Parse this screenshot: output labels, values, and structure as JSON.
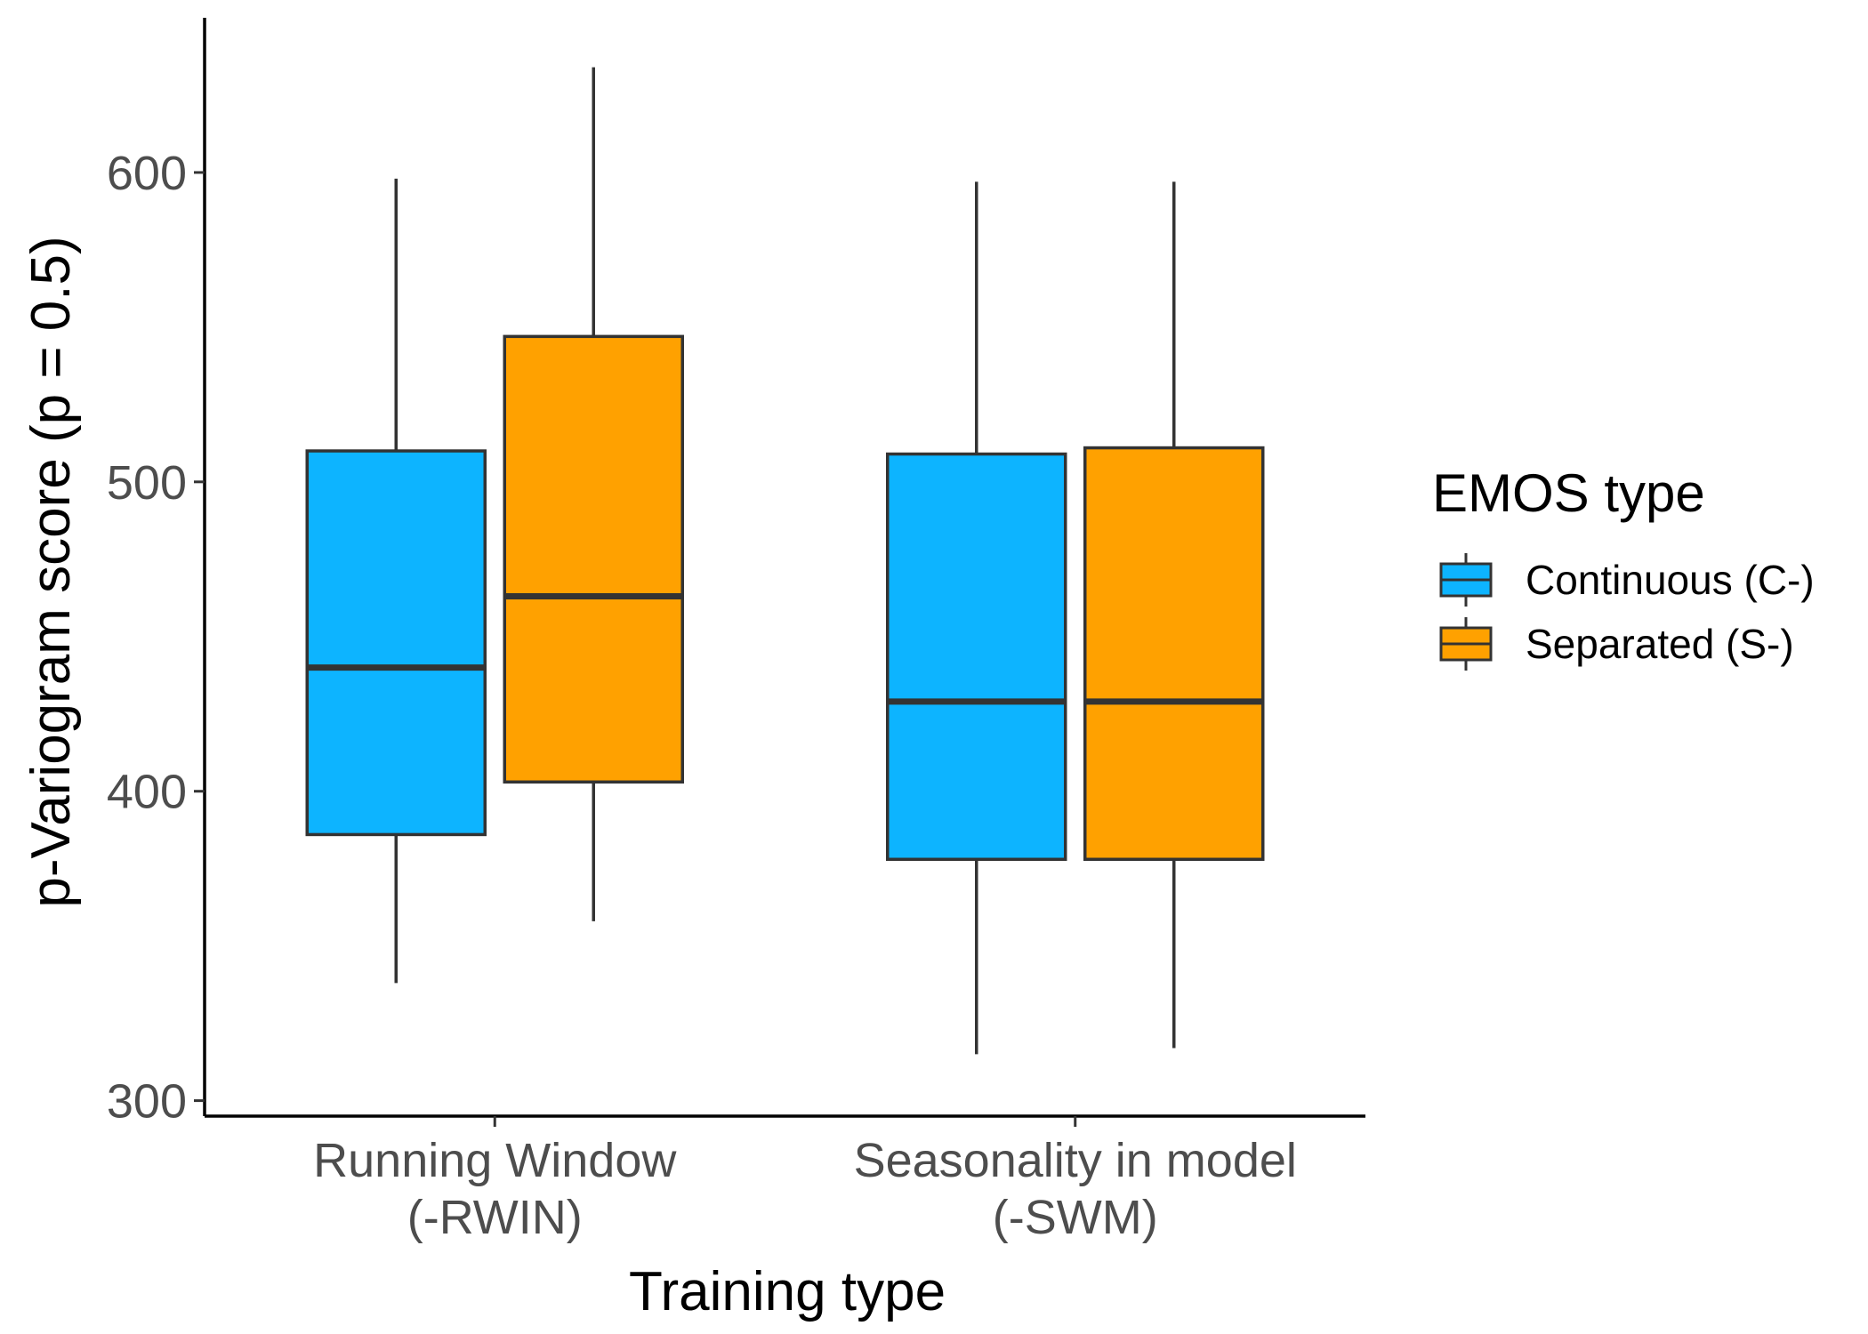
{
  "chart_data": {
    "type": "boxplot",
    "xlabel": "Training type",
    "ylabel": "p-Variogram score (p = 0.5)",
    "ylim": [
      295,
      650
    ],
    "yticks": [
      300,
      400,
      500,
      600
    ],
    "grid": false,
    "legend_position": "right",
    "legend_title": "EMOS type",
    "categories": [
      {
        "label_lines": [
          "Running Window",
          "(-RWIN)"
        ]
      },
      {
        "label_lines": [
          "Seasonality in model",
          "(-SWM)"
        ]
      }
    ],
    "series": [
      {
        "name": "Continuous (C-)",
        "color": "#0db4ff",
        "boxes": [
          {
            "whisker_low": 338,
            "q1": 386,
            "median": 440,
            "q3": 510,
            "whisker_high": 598
          },
          {
            "whisker_low": 315,
            "q1": 378,
            "median": 429,
            "q3": 509,
            "whisker_high": 597
          }
        ]
      },
      {
        "name": "Separated (S-)",
        "color": "#ffa100",
        "boxes": [
          {
            "whisker_low": 358,
            "q1": 403,
            "median": 463,
            "q3": 547,
            "whisker_high": 634
          },
          {
            "whisker_low": 317,
            "q1": 378,
            "median": 429,
            "q3": 511,
            "whisker_high": 597
          }
        ]
      }
    ]
  }
}
